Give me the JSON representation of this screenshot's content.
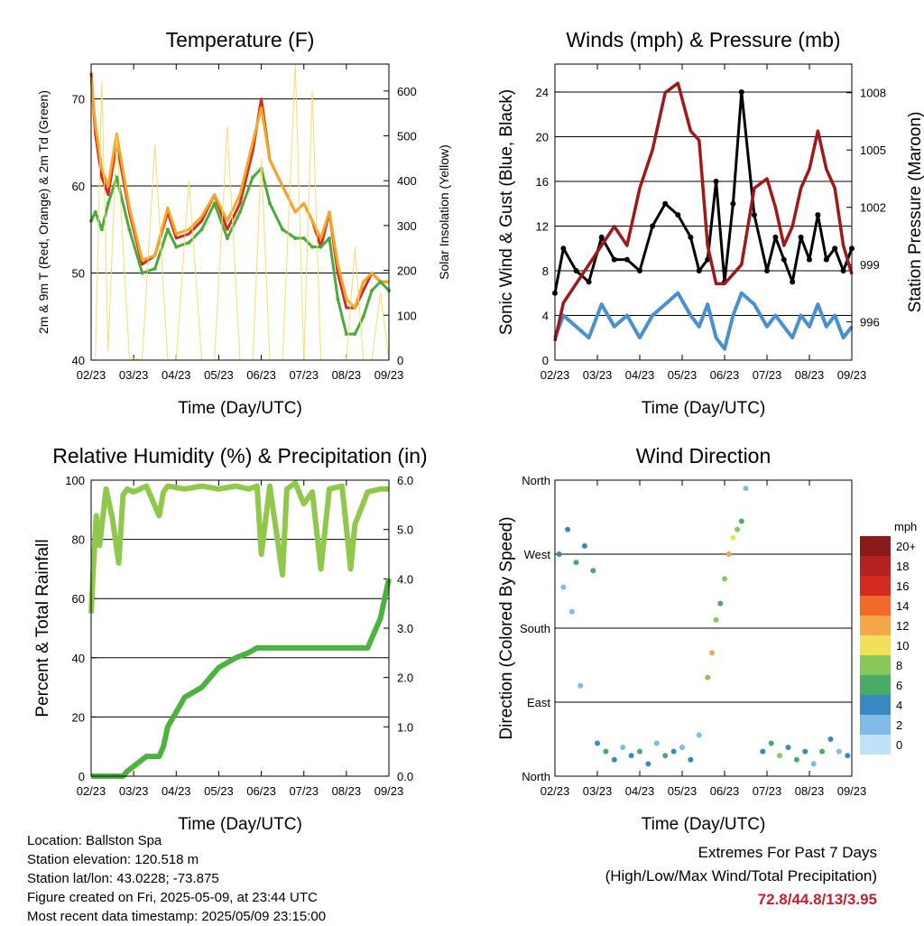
{
  "footer": {
    "location": "Location: Ballston Spa",
    "elevation": "Station elevation: 120.518 m",
    "latlon": "Station lat/lon: 43.0228; -73.875",
    "created": "Figure created on Fri, 2025-05-09, at 23:44 UTC",
    "recent": "Most recent data timestamp: 2025/05/09 23:15:00",
    "extremes_title": "Extremes For Past 7 Days",
    "extremes_sub": "(High/Low/Max Wind/Total Precipitation)",
    "extremes_values": "72.8/44.8/13/3.95",
    "extremes_color": "#c8202a"
  },
  "chart_data": [
    {
      "id": "temperature",
      "type": "line",
      "title": "Temperature (F)",
      "xlabel": "Time (Day/UTC)",
      "ylabel": "2m & 9m T (Red, Orange) & 2m Td (Green)",
      "y2label": "Solar Insolation (Yellow)",
      "x_ticks": [
        "02/23",
        "03/23",
        "04/23",
        "05/23",
        "06/23",
        "07/23",
        "08/23",
        "09/23"
      ],
      "ylim": [
        40,
        74
      ],
      "y_ticks": [
        40,
        50,
        60,
        70
      ],
      "y2lim": [
        0,
        660
      ],
      "y2_ticks": [
        0,
        100,
        200,
        300,
        400,
        500,
        600
      ],
      "grid": "horizontal",
      "x": [
        0,
        0.1,
        0.25,
        0.4,
        0.6,
        0.9,
        1.2,
        1.5,
        1.8,
        2.0,
        2.3,
        2.6,
        2.9,
        3.2,
        3.5,
        3.8,
        4.0,
        4.2,
        4.5,
        4.8,
        5.0,
        5.2,
        5.4,
        5.6,
        5.8,
        6.0,
        6.2,
        6.4,
        6.6,
        6.8,
        7.0
      ],
      "series": [
        {
          "color": "#d42a20",
          "axis": "left",
          "values": [
            73,
            66,
            61,
            59,
            65,
            57,
            51,
            52,
            57,
            54,
            54.5,
            56,
            59,
            55,
            58,
            64,
            70,
            63,
            60,
            57,
            58,
            56,
            53,
            57,
            50,
            46,
            46,
            48,
            50,
            49,
            49
          ]
        },
        {
          "color": "#f5a623",
          "axis": "left",
          "values": [
            72.5,
            67,
            62,
            60,
            66,
            57.5,
            51.5,
            52,
            57.5,
            54.5,
            55,
            56.5,
            59,
            56,
            59,
            65,
            69,
            63,
            60,
            57,
            58,
            56,
            54,
            57,
            51,
            47,
            46,
            49,
            50,
            49,
            49
          ]
        },
        {
          "color": "#4aab38",
          "axis": "left",
          "values": [
            56,
            57,
            55,
            58,
            61,
            55,
            50,
            50.5,
            55,
            53,
            53.5,
            55,
            58,
            54,
            57,
            61,
            62,
            58,
            55,
            54,
            54,
            53,
            53,
            54,
            47,
            43,
            43,
            45,
            48,
            49,
            48
          ]
        },
        {
          "color": "#f7dc6f",
          "axis": "right",
          "values": [
            0,
            0,
            620,
            20,
            500,
            5,
            0,
            480,
            0,
            0,
            400,
            0,
            0,
            520,
            0,
            0,
            450,
            0,
            0,
            660,
            0,
            600,
            0,
            0,
            0,
            0,
            250,
            0,
            0,
            150,
            0
          ]
        }
      ]
    },
    {
      "id": "winds",
      "type": "line",
      "title": "Winds (mph) & Pressure (mb)",
      "xlabel": "Time (Day/UTC)",
      "ylabel": "Sonic Wind & Gust (Blue, Black)",
      "y2label": "Station Pressure (Maroon)",
      "x_ticks": [
        "02/23",
        "03/23",
        "04/23",
        "05/23",
        "06/23",
        "07/23",
        "08/23",
        "09/23"
      ],
      "ylim": [
        0,
        26.5
      ],
      "y_ticks": [
        0,
        4,
        8,
        12,
        16,
        20,
        24
      ],
      "y2lim": [
        994,
        1009.5
      ],
      "y2_ticks": [
        996,
        999,
        1002,
        1005,
        1008
      ],
      "grid": "horizontal",
      "x": [
        0,
        0.2,
        0.5,
        0.8,
        1.1,
        1.4,
        1.7,
        2.0,
        2.3,
        2.6,
        2.9,
        3.2,
        3.4,
        3.6,
        3.8,
        4.0,
        4.2,
        4.4,
        4.7,
        5.0,
        5.2,
        5.4,
        5.6,
        5.8,
        6.0,
        6.2,
        6.4,
        6.6,
        6.8,
        7.0
      ],
      "series": [
        {
          "color": "#4a90d0",
          "axis": "left",
          "values": [
            2,
            4,
            3,
            2,
            5,
            3,
            4,
            2,
            4,
            5,
            6,
            4,
            3,
            5,
            2,
            1,
            4,
            6,
            5,
            3,
            4,
            3,
            2,
            4,
            3,
            5,
            3,
            4,
            2,
            3
          ]
        },
        {
          "color": "#000000",
          "axis": "left",
          "values": [
            6,
            10,
            8,
            7,
            11,
            9,
            9,
            8,
            12,
            14,
            13,
            11,
            8,
            9,
            16,
            7,
            14,
            24,
            13,
            8,
            11,
            9,
            7,
            11,
            9,
            13,
            9,
            10,
            8,
            10
          ]
        },
        {
          "color": "#a01818",
          "axis": "right",
          "values": [
            995,
            997,
            998,
            999,
            1000,
            1001,
            1000,
            1003,
            1005,
            1008,
            1008.5,
            1006,
            1005.5,
            1000,
            998,
            998,
            998.5,
            999,
            1003,
            1003.5,
            1002,
            1000,
            1001,
            1003,
            1004,
            1006,
            1004,
            1003,
            1000,
            998.5
          ]
        }
      ]
    },
    {
      "id": "humidity",
      "type": "line",
      "title": "Relative Humidity (%) & Precipitation (in)",
      "xlabel": "Time (Day/UTC)",
      "ylabel": "Percent & Total Rainfall",
      "x_ticks": [
        "02/23",
        "03/23",
        "04/23",
        "05/23",
        "06/23",
        "07/23",
        "08/23",
        "09/23"
      ],
      "ylim": [
        0,
        100
      ],
      "y_ticks": [
        0,
        20,
        40,
        60,
        80,
        100
      ],
      "y2lim": [
        0,
        6
      ],
      "y2_ticks": [
        "0.0",
        "1.0",
        "2.0",
        "3.0",
        "4.0",
        "5.0",
        "6.0"
      ],
      "grid": "horizontal",
      "x": [
        0,
        0.05,
        0.12,
        0.2,
        0.35,
        0.5,
        0.65,
        0.75,
        0.85,
        1.0,
        1.3,
        1.6,
        1.7,
        1.8,
        2.2,
        2.6,
        3.0,
        3.4,
        3.7,
        3.9,
        4.0,
        4.2,
        4.5,
        4.6,
        4.8,
        5.0,
        5.2,
        5.4,
        5.6,
        5.9,
        6.1,
        6.2,
        6.5,
        6.8,
        7.0
      ],
      "series": [
        {
          "color": "#8fc84a",
          "axis": "left",
          "values": [
            55,
            70,
            88,
            78,
            97,
            87,
            72,
            95,
            97,
            96,
            98,
            88,
            96,
            98,
            97,
            98,
            97,
            98,
            97,
            98,
            75,
            98,
            68,
            97,
            99,
            92,
            96,
            70,
            97,
            98,
            70,
            85,
            96,
            97,
            97
          ]
        },
        {
          "color": "#4ab43c",
          "axis": "right",
          "values": [
            0,
            0,
            0,
            0,
            0,
            0,
            0,
            0,
            0.1,
            0.2,
            0.4,
            0.4,
            0.6,
            1.0,
            1.6,
            1.8,
            2.2,
            2.4,
            2.5,
            2.6,
            2.6,
            2.6,
            2.6,
            2.6,
            2.6,
            2.6,
            2.6,
            2.6,
            2.6,
            2.6,
            2.6,
            2.6,
            2.6,
            3.2,
            4.0
          ]
        }
      ]
    },
    {
      "id": "direction",
      "type": "scatter",
      "title": "Wind Direction",
      "xlabel": "Time (Day/UTC)",
      "ylabel": "Direction (Colored By Speed)",
      "x_ticks": [
        "02/23",
        "03/23",
        "04/23",
        "05/23",
        "06/23",
        "07/23",
        "08/23",
        "09/23"
      ],
      "y_ticks": [
        "North",
        "East",
        "South",
        "West",
        "North"
      ],
      "ylim": [
        0,
        360
      ],
      "grid": "horizontal",
      "colorbar_title": "mph",
      "colorbar_labels": [
        "20+",
        "18",
        "16",
        "14",
        "12",
        "10",
        "8",
        "6",
        "4",
        "2",
        "0"
      ],
      "colorbar_colors": [
        "#8b1a1a",
        "#b52020",
        "#d42a20",
        "#f06a2a",
        "#f5a64a",
        "#f2e05a",
        "#88c85a",
        "#4aab68",
        "#3a88c0",
        "#80bbe8",
        "#bfe2f8"
      ],
      "points": [
        {
          "x": 0.1,
          "y": 270,
          "speed": 4
        },
        {
          "x": 0.2,
          "y": 230,
          "speed": 2
        },
        {
          "x": 0.3,
          "y": 300,
          "speed": 4
        },
        {
          "x": 0.4,
          "y": 200,
          "speed": 2
        },
        {
          "x": 0.5,
          "y": 260,
          "speed": 6
        },
        {
          "x": 0.6,
          "y": 110,
          "speed": 2
        },
        {
          "x": 0.7,
          "y": 280,
          "speed": 4
        },
        {
          "x": 0.9,
          "y": 250,
          "speed": 6
        },
        {
          "x": 1.0,
          "y": 40,
          "speed": 4
        },
        {
          "x": 1.2,
          "y": 30,
          "speed": 6
        },
        {
          "x": 1.4,
          "y": 20,
          "speed": 4
        },
        {
          "x": 1.6,
          "y": 35,
          "speed": 2
        },
        {
          "x": 1.8,
          "y": 25,
          "speed": 4
        },
        {
          "x": 2.0,
          "y": 30,
          "speed": 6
        },
        {
          "x": 2.2,
          "y": 15,
          "speed": 4
        },
        {
          "x": 2.4,
          "y": 40,
          "speed": 2
        },
        {
          "x": 2.6,
          "y": 25,
          "speed": 6
        },
        {
          "x": 2.8,
          "y": 30,
          "speed": 4
        },
        {
          "x": 3.0,
          "y": 35,
          "speed": 2
        },
        {
          "x": 3.2,
          "y": 20,
          "speed": 4
        },
        {
          "x": 3.4,
          "y": 50,
          "speed": 2
        },
        {
          "x": 3.6,
          "y": 120,
          "speed": 8
        },
        {
          "x": 3.7,
          "y": 150,
          "speed": 12
        },
        {
          "x": 3.8,
          "y": 190,
          "speed": 8
        },
        {
          "x": 3.9,
          "y": 210,
          "speed": 6
        },
        {
          "x": 4.0,
          "y": 240,
          "speed": 8
        },
        {
          "x": 4.1,
          "y": 270,
          "speed": 12
        },
        {
          "x": 4.2,
          "y": 290,
          "speed": 10
        },
        {
          "x": 4.3,
          "y": 300,
          "speed": 8
        },
        {
          "x": 4.4,
          "y": 310,
          "speed": 6
        },
        {
          "x": 4.5,
          "y": 350,
          "speed": 2
        },
        {
          "x": 4.9,
          "y": 30,
          "speed": 4
        },
        {
          "x": 5.1,
          "y": 40,
          "speed": 6
        },
        {
          "x": 5.3,
          "y": 25,
          "speed": 8
        },
        {
          "x": 5.5,
          "y": 35,
          "speed": 4
        },
        {
          "x": 5.7,
          "y": 20,
          "speed": 6
        },
        {
          "x": 5.9,
          "y": 30,
          "speed": 4
        },
        {
          "x": 6.1,
          "y": 15,
          "speed": 2
        },
        {
          "x": 6.3,
          "y": 30,
          "speed": 6
        },
        {
          "x": 6.5,
          "y": 45,
          "speed": 4
        },
        {
          "x": 6.7,
          "y": 30,
          "speed": 2
        },
        {
          "x": 6.9,
          "y": 25,
          "speed": 4
        }
      ]
    }
  ]
}
